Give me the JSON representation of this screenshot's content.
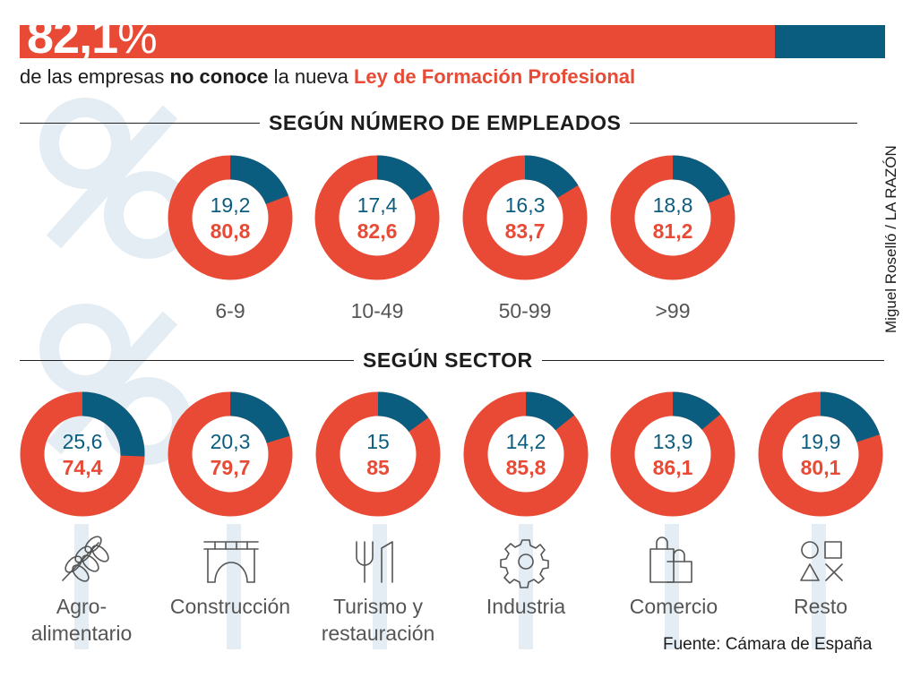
{
  "header": {
    "big_number": "82,1",
    "big_percent": "%",
    "subtitle_part1": "de las empresas ",
    "subtitle_bold": "no conoce",
    "subtitle_part2": " la nueva ",
    "subtitle_red": "Ley de Formación Profesional"
  },
  "credit": "Miguel Roselló / LA RAZÓN",
  "source": "Fuente: Cámara de España",
  "colors": {
    "red": "#e84a35",
    "blue": "#0b5d7f",
    "watermark": "#e3edf3"
  },
  "chart_data": [
    {
      "type": "pie",
      "title": "SEGÚN NÚMERO DE EMPLEADOS",
      "categories": [
        "6-9",
        "10-49",
        "50-99",
        ">99"
      ],
      "series": [
        {
          "name": "conoce",
          "values": [
            19.2,
            17.4,
            16.3,
            18.8
          ]
        },
        {
          "name": "no conoce",
          "values": [
            80.8,
            82.6,
            83.7,
            81.2
          ]
        }
      ],
      "labels": {
        "conoce": [
          "19,2",
          "17,4",
          "16,3",
          "18,8"
        ],
        "no_conoce": [
          "80,8",
          "82,6",
          "83,7",
          "81,2"
        ]
      }
    },
    {
      "type": "pie",
      "title": "SEGÚN SECTOR",
      "categories": [
        "Agro-\nalimentario",
        "Construcción",
        "Turismo y\nrestauración",
        "Industria",
        "Comercio",
        "Resto"
      ],
      "icons": [
        "wheat-icon",
        "bridge-icon",
        "fork-knife-icon",
        "gear-icon",
        "shopping-bags-icon",
        "shapes-icon"
      ],
      "series": [
        {
          "name": "conoce",
          "values": [
            25.6,
            20.3,
            15,
            14.2,
            13.9,
            19.9
          ]
        },
        {
          "name": "no conoce",
          "values": [
            74.4,
            79.7,
            85,
            85.8,
            86.1,
            80.1
          ]
        }
      ],
      "labels": {
        "conoce": [
          "25,6",
          "20,3",
          "15",
          "14,2",
          "13,9",
          "19,9"
        ],
        "no_conoce": [
          "74,4",
          "79,7",
          "85",
          "85,8",
          "86,1",
          "80,1"
        ]
      }
    }
  ]
}
